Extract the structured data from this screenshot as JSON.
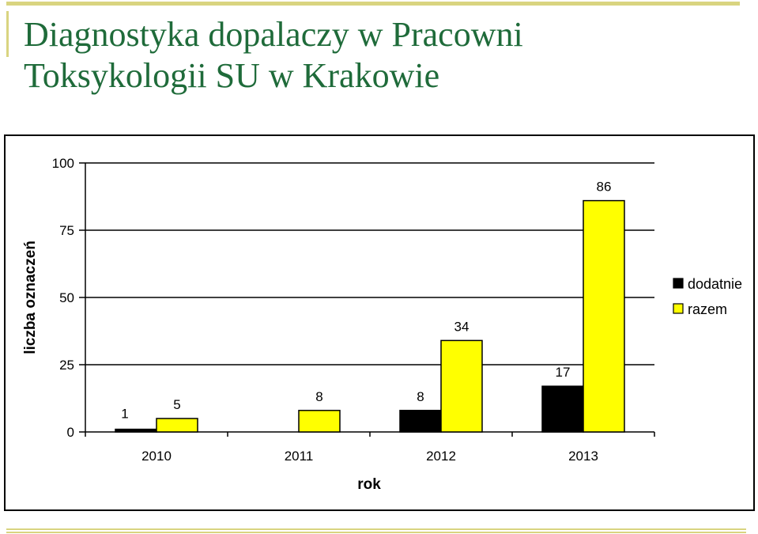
{
  "page": {
    "title_lines": [
      "Diagnostyka dopalaczy w Pracowni",
      "Toksykologii SU w Krakowie"
    ]
  },
  "colors": {
    "title": "#1f6b3a",
    "accent": "#d9d480",
    "series_dodatnie": "#000000",
    "series_razem": "#ffff00"
  },
  "chart_data": {
    "type": "bar",
    "categories": [
      "2010",
      "2011",
      "2012",
      "2013"
    ],
    "series": [
      {
        "name": "dodatnie",
        "values": [
          1,
          null,
          8,
          17
        ],
        "labels": [
          "1",
          "",
          "8",
          "17"
        ]
      },
      {
        "name": "razem",
        "values": [
          5,
          8,
          34,
          86
        ],
        "labels": [
          "5",
          "8",
          "34",
          "86"
        ]
      }
    ],
    "xlabel": "rok",
    "ylabel": "liczba oznaczeń",
    "ylim": [
      0,
      100
    ],
    "yticks": [
      0,
      25,
      50,
      75,
      100
    ],
    "grid": true,
    "legend": "right"
  }
}
